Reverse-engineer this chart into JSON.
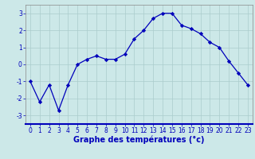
{
  "x": [
    0,
    1,
    2,
    3,
    4,
    5,
    6,
    7,
    8,
    9,
    10,
    11,
    12,
    13,
    14,
    15,
    16,
    17,
    18,
    19,
    20,
    21,
    22,
    23
  ],
  "y": [
    -1.0,
    -2.2,
    -1.2,
    -2.7,
    -1.2,
    0.0,
    0.3,
    0.5,
    0.3,
    0.3,
    0.6,
    1.5,
    2.0,
    2.7,
    3.0,
    3.0,
    2.3,
    2.1,
    1.8,
    1.3,
    1.0,
    0.2,
    -0.5,
    -1.2
  ],
  "line_color": "#0000bb",
  "marker": "D",
  "marker_size": 2.2,
  "bg_color": "#cce8e8",
  "grid_color": "#aacccc",
  "axis_color": "#0000bb",
  "xlabel": "Graphe des températures (°c)",
  "ylim": [
    -3.5,
    3.5
  ],
  "xlim": [
    -0.5,
    23.5
  ],
  "yticks": [
    -3,
    -2,
    -1,
    0,
    1,
    2,
    3
  ],
  "xticks": [
    0,
    1,
    2,
    3,
    4,
    5,
    6,
    7,
    8,
    9,
    10,
    11,
    12,
    13,
    14,
    15,
    16,
    17,
    18,
    19,
    20,
    21,
    22,
    23
  ],
  "tick_fontsize": 5.5,
  "xlabel_fontsize": 7.0
}
